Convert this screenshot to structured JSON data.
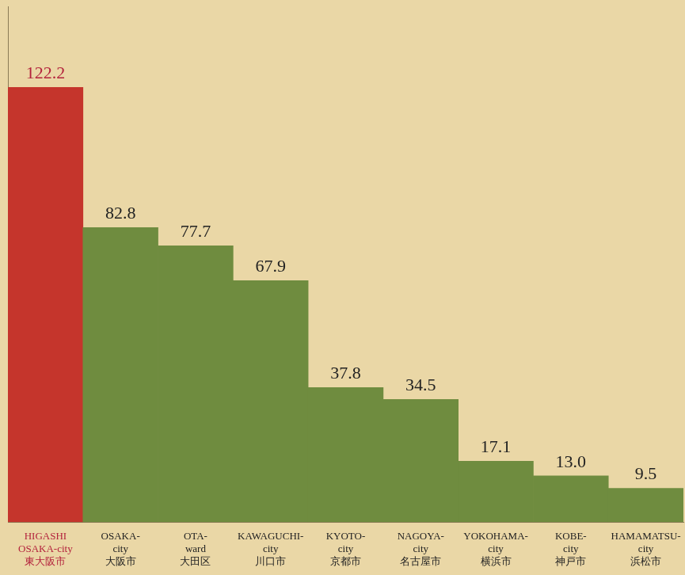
{
  "chart_data": {
    "type": "bar",
    "categories": [
      [
        "HIGASHI",
        "OSAKA-city",
        "東大阪市"
      ],
      [
        "OSAKA-",
        "city",
        "大阪市"
      ],
      [
        "OTA-",
        "ward",
        "大田区"
      ],
      [
        "KAWAGUCHI-",
        "city",
        "川口市"
      ],
      [
        "KYOTO-",
        "city",
        "京都市"
      ],
      [
        "NAGOYA-",
        "city",
        "名古屋市"
      ],
      [
        "YOKOHAMA-",
        "city",
        "横浜市"
      ],
      [
        "KOBE-",
        "city",
        "神戸市"
      ],
      [
        "HAMAMATSU-",
        "city",
        "浜松市"
      ]
    ],
    "values": [
      122.2,
      82.8,
      77.7,
      67.9,
      37.8,
      34.5,
      17.1,
      13.0,
      9.5
    ],
    "value_labels": [
      "122.2",
      "82.8",
      "77.7",
      "67.9",
      "37.8",
      "34.5",
      "17.1",
      "13.0",
      "9.5"
    ],
    "colors": [
      "#c5352c",
      "#6f8c3f",
      "#6f8c3f",
      "#6f8c3f",
      "#6f8c3f",
      "#6f8c3f",
      "#6f8c3f",
      "#6f8c3f",
      "#6f8c3f"
    ],
    "ylim": [
      0,
      145
    ],
    "grid": false,
    "data_labels": true,
    "tick_labels": "x"
  }
}
